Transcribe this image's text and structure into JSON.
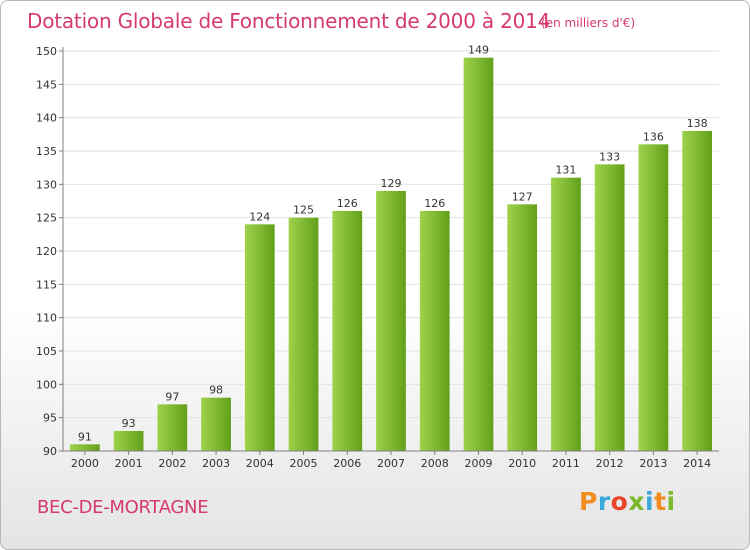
{
  "header": {
    "title": "Dotation Globale de Fonctionnement de 2000 à 2014",
    "subtitle": "(en milliers d'€)"
  },
  "footer": {
    "commune": "BEC-DE-MORTAGNE",
    "logo": "Proxiti",
    "logo_colors": [
      "#f28c1e",
      "#3aa7d8",
      "#e8452c",
      "#7ab929",
      "#3aa7d8",
      "#f28c1e",
      "#7ab929"
    ]
  },
  "colors": {
    "bar_light": "#9fd24b",
    "bar_dark": "#62a01a",
    "accent": "#d63a6b",
    "grid": "#e2e2e2",
    "axis": "#7f7f7f"
  },
  "chart_data": {
    "type": "bar",
    "categories": [
      "2000",
      "2001",
      "2002",
      "2003",
      "2004",
      "2005",
      "2006",
      "2007",
      "2008",
      "2009",
      "2010",
      "2011",
      "2012",
      "2013",
      "2014"
    ],
    "values": [
      91,
      93,
      97,
      98,
      124,
      125,
      126,
      129,
      126,
      149,
      127,
      131,
      133,
      136,
      138
    ],
    "ylim": [
      90,
      150
    ],
    "yticks": [
      90,
      95,
      100,
      105,
      110,
      115,
      120,
      125,
      130,
      135,
      140,
      145,
      150
    ],
    "grid": true
  }
}
